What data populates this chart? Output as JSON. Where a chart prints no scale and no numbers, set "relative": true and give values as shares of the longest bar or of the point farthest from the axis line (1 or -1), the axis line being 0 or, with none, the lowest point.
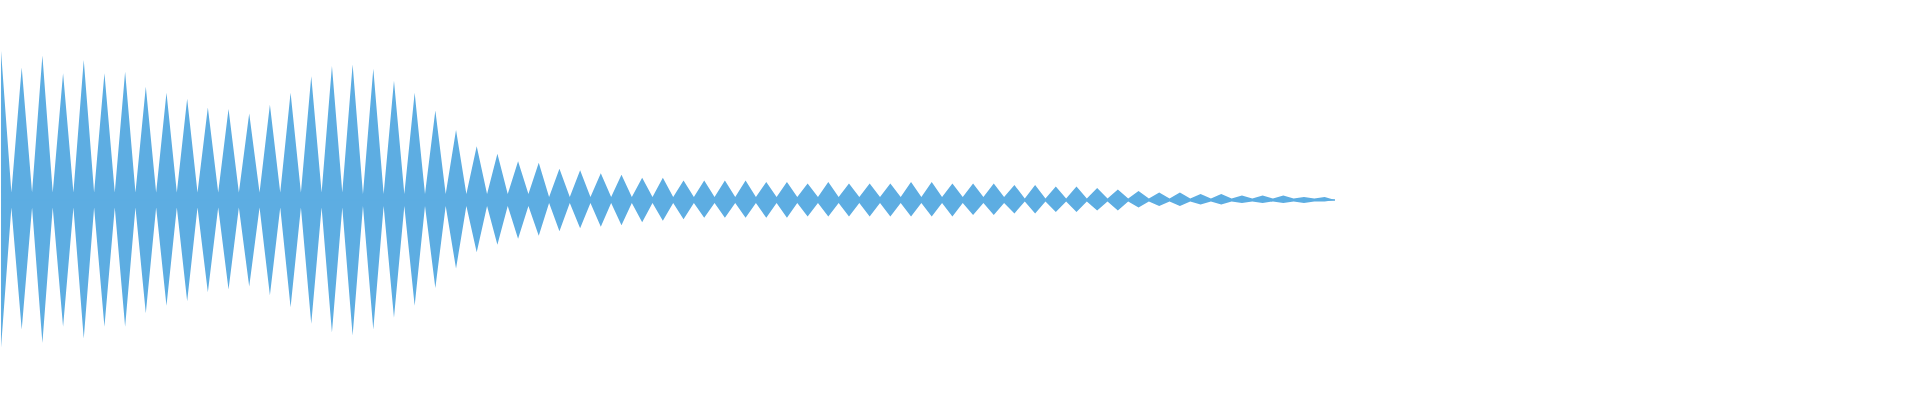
{
  "chart_data": {
    "type": "area",
    "relative": true,
    "categories": [
      null,
      null,
      null,
      null,
      null,
      null,
      null,
      null,
      null,
      null,
      null,
      null,
      null,
      null,
      null,
      null,
      null,
      null,
      null,
      null,
      null,
      null,
      null,
      null,
      null,
      null,
      null,
      null,
      null,
      null,
      null,
      null,
      null,
      null,
      null,
      null,
      null,
      null,
      null,
      null,
      null,
      null,
      null,
      null,
      null,
      null,
      null,
      null,
      null,
      null,
      null,
      null,
      null,
      null,
      null,
      null,
      null,
      null,
      null,
      null,
      null,
      null,
      null,
      null,
      null,
      null,
      null,
      null,
      null,
      null,
      null,
      null,
      null,
      null,
      null,
      null,
      null,
      null,
      null,
      null,
      null,
      null,
      null,
      null,
      null,
      null,
      null,
      null,
      null,
      null,
      null,
      null,
      null,
      null,
      null,
      null,
      null,
      null,
      null,
      null,
      null,
      null,
      null,
      null,
      null,
      null,
      null,
      null,
      null,
      null,
      null,
      null,
      null,
      null,
      null,
      null,
      null,
      null,
      null,
      null,
      null,
      null,
      null,
      null,
      null,
      null,
      null,
      null,
      null,
      null
    ],
    "series": [
      {
        "color": "#5dade2",
        "values": [
          1.0,
          0.05,
          0.89,
          0.05,
          0.97,
          0.05,
          0.85,
          0.05,
          0.94,
          0.05,
          0.85,
          0.05,
          0.86,
          0.05,
          0.76,
          0.05,
          0.72,
          0.05,
          0.68,
          0.05,
          0.62,
          0.05,
          0.61,
          0.05,
          0.58,
          0.05,
          0.64,
          0.05,
          0.72,
          0.05,
          0.83,
          0.05,
          0.9,
          0.05,
          0.91,
          0.04,
          0.88,
          0.04,
          0.8,
          0.04,
          0.72,
          0.04,
          0.6,
          0.04,
          0.47,
          0.04,
          0.36,
          0.04,
          0.31,
          0.04,
          0.26,
          0.04,
          0.25,
          0.02,
          0.21,
          0.02,
          0.2,
          0.02,
          0.18,
          0.02,
          0.17,
          0.02,
          0.15,
          0.02,
          0.15,
          0.02,
          0.13,
          0.02,
          0.13,
          0.02,
          0.13,
          0.02,
          0.13,
          0.02,
          0.12,
          0.02,
          0.12,
          0.02,
          0.11,
          0.02,
          0.12,
          0.02,
          0.11,
          0.02,
          0.11,
          0.02,
          0.11,
          0.02,
          0.12,
          0.02,
          0.12,
          0.02,
          0.11,
          0.02,
          0.11,
          0.02,
          0.11,
          0.02,
          0.1,
          0.01,
          0.1,
          0.01,
          0.09,
          0.01,
          0.09,
          0.01,
          0.08,
          0.01,
          0.07,
          0.01,
          0.06,
          0.01,
          0.05,
          0.01,
          0.05,
          0.01,
          0.04,
          0.01,
          0.04,
          0.01,
          0.03,
          0.01,
          0.03,
          0.01,
          0.03,
          0.01,
          0.02,
          0.01,
          0.02,
          0
        ]
      },
      {
        "color": "#5dade2",
        "values": [
          -0.99,
          -0.05,
          -0.87,
          -0.05,
          -0.96,
          -0.05,
          -0.85,
          -0.05,
          -0.93,
          -0.05,
          -0.85,
          -0.05,
          -0.85,
          -0.05,
          -0.76,
          -0.05,
          -0.71,
          -0.05,
          -0.68,
          -0.05,
          -0.62,
          -0.05,
          -0.6,
          -0.05,
          -0.58,
          -0.05,
          -0.64,
          -0.05,
          -0.72,
          -0.05,
          -0.83,
          -0.05,
          -0.89,
          -0.05,
          -0.91,
          -0.04,
          -0.87,
          -0.04,
          -0.79,
          -0.04,
          -0.71,
          -0.04,
          -0.59,
          -0.04,
          -0.46,
          -0.04,
          -0.35,
          -0.04,
          -0.3,
          -0.04,
          -0.26,
          -0.04,
          -0.24,
          -0.02,
          -0.21,
          -0.02,
          -0.19,
          -0.02,
          -0.18,
          -0.02,
          -0.17,
          -0.02,
          -0.15,
          -0.02,
          -0.14,
          -0.02,
          -0.13,
          -0.02,
          -0.12,
          -0.02,
          -0.12,
          -0.02,
          -0.12,
          -0.02,
          -0.12,
          -0.02,
          -0.12,
          -0.02,
          -0.11,
          -0.02,
          -0.11,
          -0.02,
          -0.11,
          -0.02,
          -0.11,
          -0.02,
          -0.11,
          -0.02,
          -0.11,
          -0.02,
          -0.11,
          -0.02,
          -0.11,
          -0.02,
          -0.1,
          -0.02,
          -0.1,
          -0.02,
          -0.09,
          -0.01,
          -0.09,
          -0.01,
          -0.08,
          -0.01,
          -0.08,
          -0.01,
          -0.07,
          -0.01,
          -0.07,
          -0.01,
          -0.05,
          -0.01,
          -0.04,
          -0.01,
          -0.04,
          -0.01,
          -0.03,
          -0.01,
          -0.03,
          -0.01,
          -0.02,
          -0.01,
          -0.02,
          -0.01,
          -0.02,
          -0.01,
          -0.02,
          -0.01,
          -0.01,
          0
        ]
      }
    ],
    "ref_lines": [
      {
        "axis": "y",
        "value": 0,
        "color": "#5dade2"
      }
    ]
  }
}
